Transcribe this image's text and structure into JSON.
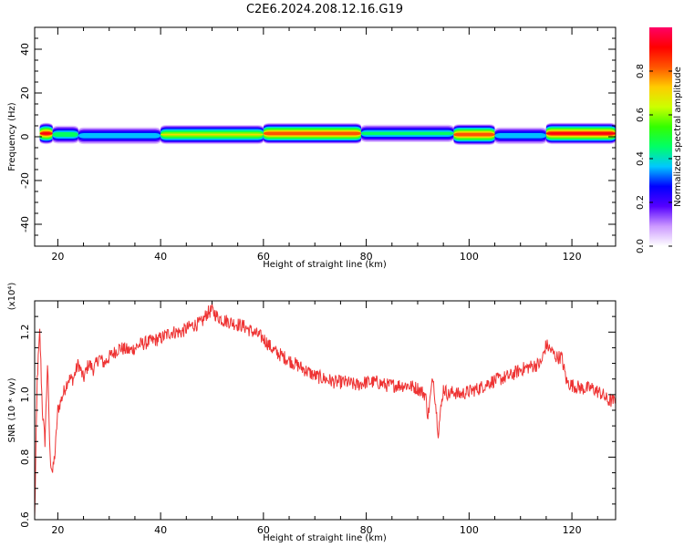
{
  "title": "C2E6.2024.208.12.16.G19",
  "colors": {
    "snr_line": "#ee3333",
    "axis": "#000000"
  },
  "chart_data": [
    {
      "type": "heatmap",
      "xlabel": "Height of straight line (km)",
      "ylabel": "Frequency (Hz)",
      "xlim": [
        15.5,
        128.5
      ],
      "ylim": [
        -50,
        50
      ],
      "x_ticks": [
        20,
        40,
        60,
        80,
        100,
        120
      ],
      "y_ticks": [
        -40,
        -20,
        0,
        20,
        40
      ],
      "colorbar": {
        "label": "Normalized spectral amplitude",
        "range": [
          0,
          1
        ],
        "ticks": [
          "0.0",
          "0.2",
          "0.4",
          "0.6",
          "0.8"
        ],
        "colormap": [
          "#ffffff",
          "#cc99ff",
          "#5500ff",
          "#0000ff",
          "#00c8ff",
          "#00ff66",
          "#33ff00",
          "#ccff00",
          "#ffcc00",
          "#ff5500",
          "#ff0000",
          "#ff0066"
        ]
      },
      "band_segments": [
        {
          "x0": 16.5,
          "x1": 19.0,
          "center": 1.5,
          "peak": 0.95
        },
        {
          "x0": 19.0,
          "x1": 24.0,
          "center": 1.0,
          "peak": 0.55
        },
        {
          "x0": 24.0,
          "x1": 40.0,
          "center": 0.5,
          "peak": 0.45
        },
        {
          "x0": 40.0,
          "x1": 60.0,
          "center": 1.0,
          "peak": 0.7
        },
        {
          "x0": 60.0,
          "x1": 79.0,
          "center": 1.5,
          "peak": 0.9
        },
        {
          "x0": 79.0,
          "x1": 97.0,
          "center": 1.5,
          "peak": 0.5
        },
        {
          "x0": 97.0,
          "x1": 105.0,
          "center": 1.0,
          "peak": 0.9
        },
        {
          "x0": 105.0,
          "x1": 115.0,
          "center": 0.5,
          "peak": 0.45
        },
        {
          "x0": 115.0,
          "x1": 128.5,
          "center": 1.5,
          "peak": 0.95
        }
      ]
    },
    {
      "type": "line",
      "xlabel": "Height of straight line (km)",
      "ylabel": "SNR (10 * v/v)",
      "multiplier": "(x10⁴)",
      "xlim": [
        15.5,
        128.5
      ],
      "ylim": [
        0.6,
        1.3
      ],
      "x_ticks": [
        20,
        40,
        60,
        80,
        100,
        120
      ],
      "y_ticks": [
        "0.6",
        "0.8",
        "1.0",
        "1.2"
      ],
      "series": [
        {
          "x": [
            15.5,
            16.0,
            16.5,
            17.0,
            17.5,
            18.0,
            18.5,
            19.0,
            19.5,
            20.0,
            21.0,
            22.0,
            23.0,
            24.0,
            25.0,
            26.0,
            27.0,
            28.0,
            29.0,
            30.0,
            32.0,
            34.0,
            36.0,
            38.0,
            40.0,
            42.0,
            44.0,
            46.0,
            48.0,
            49.0,
            50.0,
            51.0,
            52.0,
            54.0,
            56.0,
            58.0,
            60.0,
            62.0,
            64.0,
            66.0,
            68.0,
            70.0,
            72.0,
            74.0,
            76.0,
            78.0,
            80.0,
            82.0,
            84.0,
            86.0,
            88.0,
            90.0,
            91.5,
            92.0,
            93.0,
            94.0,
            95.0,
            96.0,
            97.0,
            98.0,
            100.0,
            102.0,
            104.0,
            106.0,
            108.0,
            110.0,
            112.0,
            114.0,
            115.0,
            116.0,
            117.0,
            118.0,
            119.0,
            120.0,
            122.0,
            124.0,
            126.0,
            127.0,
            128.5
          ],
          "y": [
            0.6,
            1.05,
            1.2,
            0.95,
            0.85,
            1.1,
            0.8,
            0.75,
            0.82,
            0.95,
            1.0,
            1.05,
            1.05,
            1.1,
            1.05,
            1.1,
            1.08,
            1.12,
            1.1,
            1.12,
            1.15,
            1.14,
            1.16,
            1.17,
            1.18,
            1.2,
            1.2,
            1.22,
            1.23,
            1.26,
            1.27,
            1.25,
            1.24,
            1.23,
            1.22,
            1.2,
            1.18,
            1.14,
            1.12,
            1.1,
            1.08,
            1.06,
            1.05,
            1.04,
            1.04,
            1.03,
            1.04,
            1.04,
            1.03,
            1.03,
            1.03,
            1.02,
            1.0,
            0.93,
            1.06,
            0.88,
            1.02,
            1.0,
            1.01,
            1.0,
            1.01,
            1.02,
            1.04,
            1.05,
            1.06,
            1.08,
            1.09,
            1.1,
            1.16,
            1.14,
            1.12,
            1.12,
            1.04,
            1.03,
            1.02,
            1.02,
            1.0,
            0.98,
            0.98
          ]
        }
      ]
    }
  ]
}
